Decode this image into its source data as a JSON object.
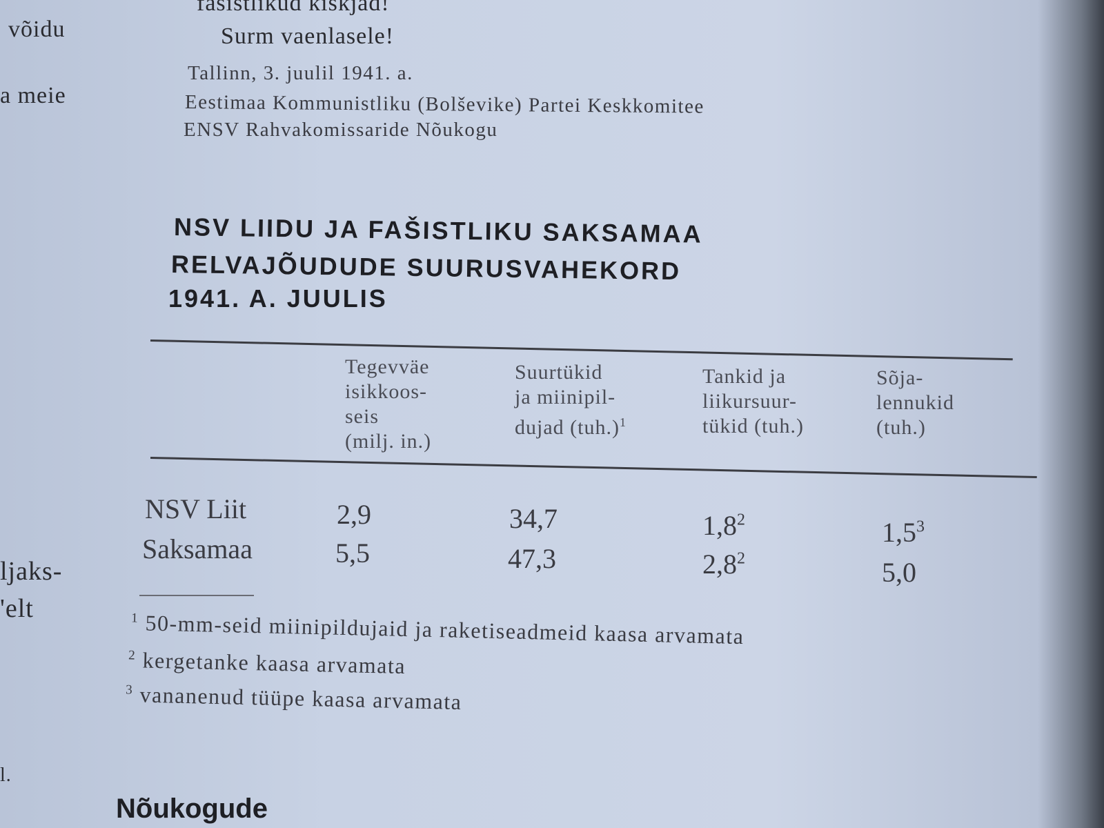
{
  "margin_fragments": [
    "võidu",
    "a meie",
    "ljaks-",
    "'elt",
    "l."
  ],
  "proclamation": {
    "line1": "fašistlikud kiskjad!",
    "line2": "Surm vaenlasele!",
    "place_date": "Tallinn, 3. juulil 1941. a.",
    "signatory1": "Eestimaa Kommunistliku (Bolševike) Partei Keskkomitee",
    "signatory2": "ENSV Rahvakomissaride Nõukogu"
  },
  "table": {
    "title_lines": [
      "NSV LIIDU JA FAŠISTLIKU SAKSAMAA",
      "RELVAJÕUDUDE SUURUSVAHEKORD",
      "1941. A. JUULIS"
    ],
    "columns": [
      {
        "lines": [
          "Tegevväe",
          "isikkoos-",
          "seis",
          "(milj. in.)"
        ]
      },
      {
        "lines": [
          "Suurtükid",
          "ja miinipil-",
          "dujad (tuh.)"
        ],
        "note": "1"
      },
      {
        "lines": [
          "Tankid ja",
          "liikursuur-",
          "tükid (tuh.)"
        ]
      },
      {
        "lines": [
          "Sõja-",
          "lennukid",
          "(tuh.)"
        ]
      }
    ],
    "rows": [
      {
        "label": "NSV Liit",
        "cells": [
          {
            "v": "2,9"
          },
          {
            "v": "34,7"
          },
          {
            "v": "1,8",
            "note": "2"
          },
          {
            "v": "1,5",
            "note": "3"
          }
        ]
      },
      {
        "label": "Saksamaa",
        "cells": [
          {
            "v": "5,5"
          },
          {
            "v": "47,3"
          },
          {
            "v": "2,8",
            "note": "2"
          },
          {
            "v": "5,0"
          }
        ]
      }
    ],
    "footnotes": [
      {
        "mark": "1",
        "text": "50-mm-seid miinipildujaid ja raketiseadmeid kaasa arvamata"
      },
      {
        "mark": "2",
        "text": "kergetanke kaasa arvamata"
      },
      {
        "mark": "3",
        "text": "vananenud tüüpe kaasa arvamata"
      }
    ]
  },
  "bottom_fragment": "Nõukogude"
}
